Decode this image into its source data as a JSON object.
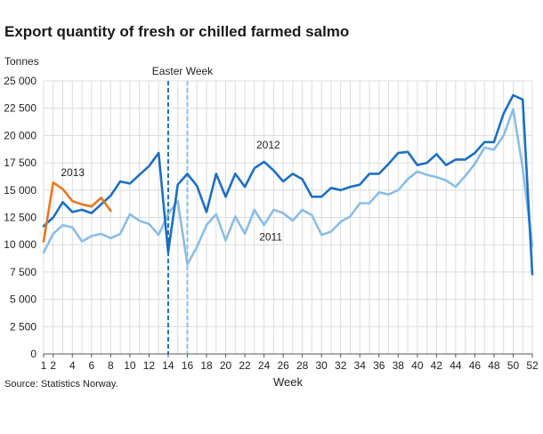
{
  "page": {
    "title": "Export quantity of fresh or chilled farmed salmo",
    "source": "Statistics Norway."
  },
  "chart_data": {
    "type": "line",
    "title": "Export quantity of fresh or chilled farmed salmo",
    "ylabel": "Tonnes",
    "xlabel": "Week",
    "xlim": [
      1,
      52
    ],
    "ylim": [
      0,
      25000
    ],
    "grid": true,
    "x_ticks": [
      1,
      2,
      4,
      6,
      8,
      10,
      12,
      14,
      16,
      18,
      20,
      22,
      24,
      26,
      28,
      30,
      32,
      34,
      36,
      38,
      40,
      42,
      44,
      46,
      48,
      50,
      52
    ],
    "y_ticks": [
      {
        "value": 0,
        "label": "0"
      },
      {
        "value": 2500,
        "label": "2 500"
      },
      {
        "value": 5000,
        "label": "5 000"
      },
      {
        "value": 7500,
        "label": "7 500"
      },
      {
        "value": 10000,
        "label": "10 000"
      },
      {
        "value": 12500,
        "label": "12 500"
      },
      {
        "value": 15000,
        "label": "15 000"
      },
      {
        "value": 17500,
        "label": "17 500"
      },
      {
        "value": 20000,
        "label": "20 000"
      },
      {
        "value": 22500,
        "label": "22 500"
      },
      {
        "value": 25000,
        "label": "25 000"
      }
    ],
    "series": [
      {
        "name": "2011",
        "color": "#8bbde5",
        "label_at": {
          "x": 23.5,
          "y": 10400
        },
        "x": [
          1,
          2,
          3,
          4,
          5,
          6,
          7,
          8,
          9,
          10,
          11,
          12,
          13,
          14,
          15,
          16,
          17,
          18,
          19,
          20,
          21,
          22,
          23,
          24,
          25,
          26,
          27,
          28,
          29,
          30,
          31,
          32,
          33,
          34,
          35,
          36,
          37,
          38,
          39,
          40,
          41,
          42,
          43,
          44,
          45,
          46,
          47,
          48,
          49,
          50,
          51,
          52
        ],
        "values": [
          9300,
          11000,
          11800,
          11600,
          10300,
          10800,
          11000,
          10600,
          11000,
          12800,
          12200,
          11900,
          10900,
          12800,
          14000,
          8200,
          9800,
          11800,
          12800,
          10400,
          12600,
          11000,
          13200,
          11800,
          13200,
          12900,
          12200,
          13200,
          12700,
          10900,
          11200,
          12100,
          12600,
          13800,
          13800,
          14800,
          14600,
          15000,
          16000,
          16700,
          16400,
          16200,
          15900,
          15300,
          16300,
          17400,
          18900,
          18700,
          20000,
          22400,
          17000,
          9900
        ]
      },
      {
        "name": "2012",
        "color": "#1c6fc2",
        "label_at": {
          "x": 23.2,
          "y": 18800
        },
        "x": [
          1,
          2,
          3,
          4,
          5,
          6,
          7,
          8,
          9,
          10,
          11,
          12,
          13,
          14,
          15,
          16,
          17,
          18,
          19,
          20,
          21,
          22,
          23,
          24,
          25,
          26,
          27,
          28,
          29,
          30,
          31,
          32,
          33,
          34,
          35,
          36,
          37,
          38,
          39,
          40,
          41,
          42,
          43,
          44,
          45,
          46,
          47,
          48,
          49,
          50,
          51,
          52
        ],
        "values": [
          11700,
          12500,
          13900,
          13000,
          13200,
          12900,
          13700,
          14500,
          15800,
          15600,
          16400,
          17200,
          18400,
          9300,
          15500,
          16500,
          15400,
          13000,
          16500,
          14400,
          16500,
          15300,
          17000,
          17600,
          16800,
          15800,
          16500,
          16000,
          14400,
          14400,
          15200,
          15000,
          15300,
          15500,
          16500,
          16500,
          17400,
          18400,
          18500,
          17300,
          17500,
          18300,
          17300,
          17800,
          17800,
          18400,
          19400,
          19400,
          22000,
          23700,
          23300,
          7300
        ]
      },
      {
        "name": "2013",
        "color": "#e87722",
        "label_at": {
          "x": 2.8,
          "y": 16300
        },
        "x": [
          1,
          2,
          3,
          4,
          5,
          6,
          7,
          8
        ],
        "values": [
          10300,
          15700,
          15100,
          14000,
          13700,
          13500,
          14300,
          13100
        ]
      }
    ],
    "annotations": [
      {
        "label": "Easter Week",
        "x": 14,
        "style": "dashed",
        "color": "#1c6fc2"
      },
      {
        "label": "",
        "x": 16,
        "style": "dashed",
        "color": "#8bbde5"
      }
    ]
  }
}
